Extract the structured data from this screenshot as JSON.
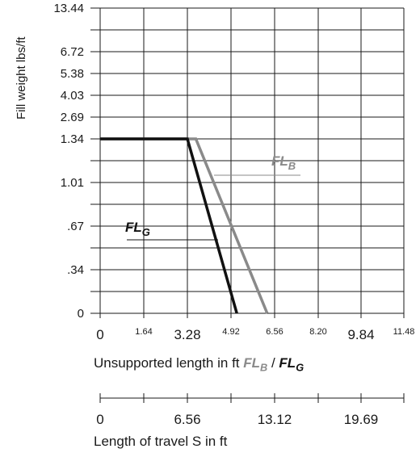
{
  "chart_data": {
    "type": "line",
    "ylabel": "Fill weight lbs/ft",
    "y_tick_labels": [
      "0",
      ".34",
      ".67",
      "1.01",
      "1.34",
      "2.69",
      "4.03",
      "5.38",
      "6.72",
      "13.44"
    ],
    "x_tick_labels_large": [
      "0",
      "3.28",
      "9.84"
    ],
    "x_tick_labels_small": [
      "1.64",
      "4.92",
      "6.56",
      "8.20",
      "11.48"
    ],
    "xlabel_prefix": "Unsupported length in ft ",
    "xlabel_sep": " / ",
    "x2_tick_labels": [
      "0",
      "6.56",
      "13.12",
      "19.69"
    ],
    "x2label": "Length of travel S in ft",
    "series": [
      {
        "name": "FLB",
        "name_main": "FL",
        "name_sub": "B",
        "color": "#8a8a8a",
        "points": [
          [
            0,
            1.34
          ],
          [
            3.6,
            1.34
          ],
          [
            6.28,
            0
          ]
        ]
      },
      {
        "name": "FLG",
        "name_main": "FL",
        "name_sub": "G",
        "color": "#111111",
        "points": [
          [
            0,
            1.34
          ],
          [
            3.28,
            1.34
          ],
          [
            5.14,
            0
          ]
        ]
      }
    ]
  }
}
